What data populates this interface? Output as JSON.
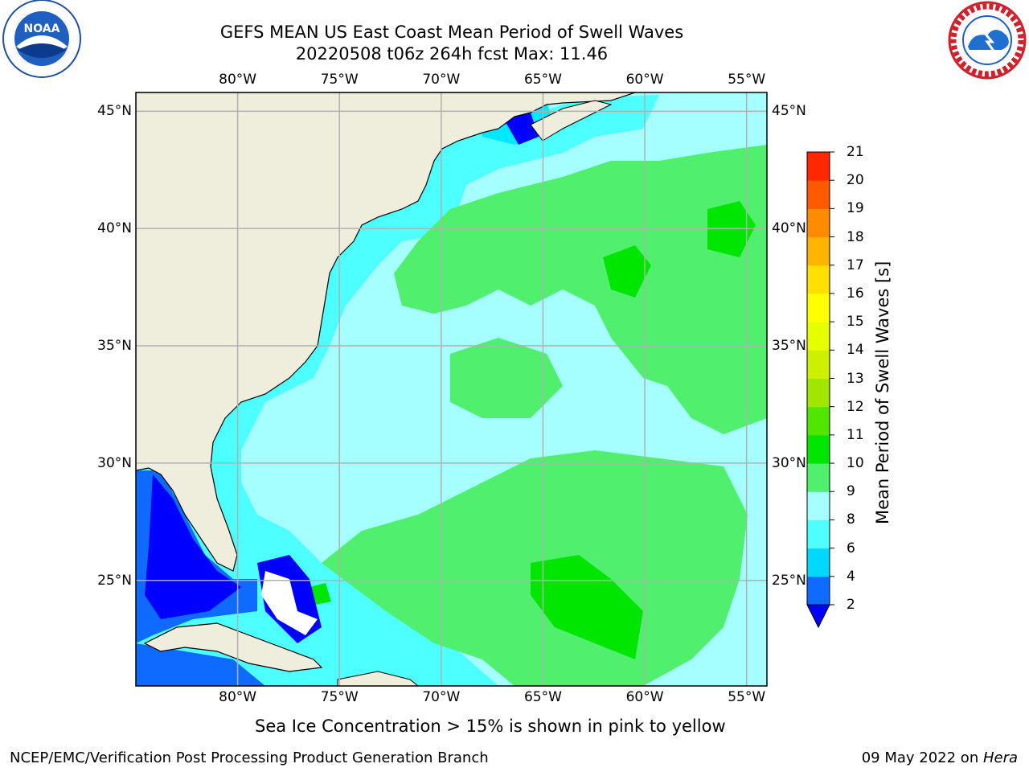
{
  "title_line1": "GEFS MEAN US East Coast Mean Period of Swell Waves",
  "title_line2": "20220508 t06z 264h fcst   Max: 11.46",
  "map": {
    "lon_range": [
      -85,
      -54
    ],
    "lat_range": [
      20.5,
      45.8
    ],
    "lon_ticks": [
      "80°W",
      "75°W",
      "70°W",
      "65°W",
      "60°W",
      "55°W"
    ],
    "lat_ticks": [
      "45°N",
      "40°N",
      "35°N",
      "30°N",
      "25°N"
    ],
    "lon_values": [
      -80,
      -75,
      -70,
      -65,
      -60,
      -55
    ],
    "lat_values": [
      45,
      40,
      35,
      30,
      25
    ],
    "land_color": "#efeddc",
    "grid": true
  },
  "colorbar": {
    "title": "Mean Period of Swell Waves [s]",
    "levels": [
      2,
      4,
      6,
      8,
      9,
      10,
      11,
      12,
      13,
      14,
      15,
      16,
      17,
      18,
      19,
      20,
      21
    ],
    "labels": [
      "2",
      "4",
      "6",
      "8",
      "9",
      "10",
      "11",
      "12",
      "13",
      "14",
      "15",
      "16",
      "17",
      "18",
      "19",
      "20",
      "21"
    ],
    "colors": [
      "#0f6bff",
      "#00d8ff",
      "#4dffff",
      "#a6ffff",
      "#50f06e",
      "#00e600",
      "#50e600",
      "#a0e600",
      "#ccf000",
      "#e6ff00",
      "#ffff00",
      "#ffe000",
      "#ffb400",
      "#ff8c00",
      "#ff5a00",
      "#ff2800"
    ],
    "extend_color": "#0000ff"
  },
  "footnote": "Sea Ice Concentration > 15% is shown in pink to yellow",
  "credit_left": "NCEP/EMC/Verification Post Processing Product Generation Branch",
  "credit_date": "09 May 2022 on ",
  "credit_machine": "Hera",
  "logos": {
    "left": "noaa-logo",
    "right": "nws-logo"
  }
}
